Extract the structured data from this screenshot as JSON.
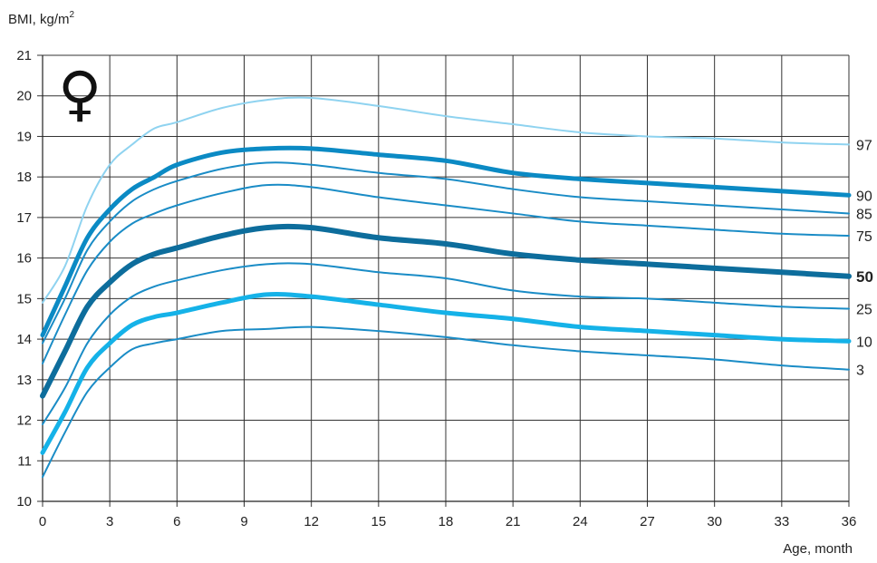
{
  "chart_data": {
    "type": "line",
    "title": "",
    "ylabel": "BMI, kg/m",
    "ylabel_superscript": "2",
    "xlabel": "Age, month",
    "symbol": "♀",
    "xlim": [
      0,
      36
    ],
    "ylim": [
      10,
      21
    ],
    "xticks": [
      "0",
      "3",
      "6",
      "9",
      "12",
      "15",
      "18",
      "21",
      "24",
      "27",
      "30",
      "33",
      "36"
    ],
    "yticks": [
      "10",
      "11",
      "12",
      "13",
      "14",
      "15",
      "16",
      "17",
      "18",
      "19",
      "20",
      "21"
    ],
    "grid": true,
    "x": [
      0,
      1,
      2,
      3,
      4,
      5,
      6,
      8,
      10,
      12,
      15,
      18,
      21,
      24,
      27,
      30,
      33,
      36
    ],
    "series": [
      {
        "name": "97",
        "color": "#8fd3f0",
        "width": 2,
        "values": [
          14.9,
          15.8,
          17.3,
          18.3,
          18.8,
          19.2,
          19.35,
          19.7,
          19.9,
          19.95,
          19.75,
          19.5,
          19.3,
          19.1,
          19.0,
          18.95,
          18.85,
          18.8
        ]
      },
      {
        "name": "90",
        "color": "#0b8ac4",
        "width": 5,
        "values": [
          14.1,
          15.3,
          16.5,
          17.2,
          17.7,
          18.0,
          18.3,
          18.6,
          18.7,
          18.7,
          18.55,
          18.4,
          18.1,
          17.95,
          17.85,
          17.75,
          17.65,
          17.55
        ]
      },
      {
        "name": "85",
        "color": "#1a8cc6",
        "width": 2,
        "values": [
          13.9,
          15.0,
          16.2,
          16.9,
          17.4,
          17.7,
          17.9,
          18.2,
          18.35,
          18.3,
          18.1,
          17.95,
          17.7,
          17.5,
          17.4,
          17.3,
          17.2,
          17.1
        ]
      },
      {
        "name": "75",
        "color": "#1a8cc6",
        "width": 2,
        "values": [
          13.4,
          14.6,
          15.7,
          16.4,
          16.85,
          17.1,
          17.3,
          17.6,
          17.8,
          17.75,
          17.5,
          17.3,
          17.1,
          16.9,
          16.8,
          16.7,
          16.6,
          16.55
        ]
      },
      {
        "name": "50",
        "color": "#0d6d9c",
        "width": 6,
        "values": [
          12.6,
          13.7,
          14.8,
          15.4,
          15.85,
          16.1,
          16.25,
          16.55,
          16.75,
          16.75,
          16.5,
          16.35,
          16.1,
          15.95,
          15.85,
          15.75,
          15.65,
          15.55
        ]
      },
      {
        "name": "25",
        "color": "#1a8cc6",
        "width": 2,
        "values": [
          11.9,
          12.8,
          13.9,
          14.6,
          15.05,
          15.3,
          15.45,
          15.7,
          15.85,
          15.85,
          15.65,
          15.5,
          15.2,
          15.05,
          15.0,
          14.9,
          14.8,
          14.75
        ]
      },
      {
        "name": "10",
        "color": "#15b2e8",
        "width": 5,
        "values": [
          11.2,
          12.2,
          13.3,
          13.9,
          14.35,
          14.55,
          14.65,
          14.9,
          15.1,
          15.05,
          14.85,
          14.65,
          14.5,
          14.3,
          14.2,
          14.1,
          14.0,
          13.95
        ]
      },
      {
        "name": "3",
        "color": "#1a8cc6",
        "width": 2,
        "values": [
          10.6,
          11.7,
          12.7,
          13.3,
          13.75,
          13.9,
          14.0,
          14.2,
          14.25,
          14.3,
          14.2,
          14.05,
          13.85,
          13.7,
          13.6,
          13.5,
          13.35,
          13.25
        ]
      }
    ]
  }
}
